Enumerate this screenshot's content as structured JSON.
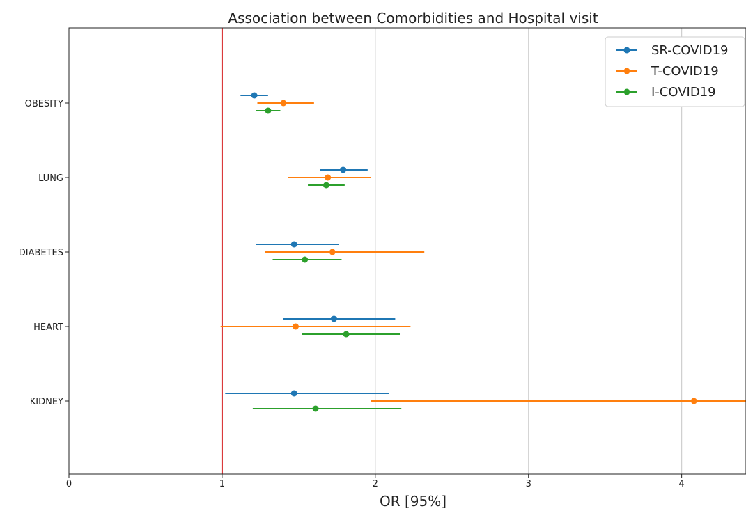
{
  "chart_data": {
    "type": "forest",
    "title": "Association between Comorbidities and Hospital visit",
    "xlabel": "OR [95%]",
    "ylabel": "",
    "xlim": [
      0,
      4.42
    ],
    "xticks": [
      0,
      1,
      2,
      3,
      4
    ],
    "reference_line": {
      "x": 1,
      "color": "#d62728"
    },
    "grid": "vertical",
    "legend_position": "top-right",
    "categories": [
      "OBESITY",
      "LUNG",
      "DIABETES",
      "HEART",
      "KIDNEY"
    ],
    "series": [
      {
        "name": "SR-COVID19",
        "color": "#1f77b4",
        "points": [
          {
            "or": 1.21,
            "low": 1.12,
            "high": 1.3
          },
          {
            "or": 1.79,
            "low": 1.64,
            "high": 1.95
          },
          {
            "or": 1.47,
            "low": 1.22,
            "high": 1.76
          },
          {
            "or": 1.73,
            "low": 1.4,
            "high": 2.13
          },
          {
            "or": 1.47,
            "low": 1.02,
            "high": 2.09
          }
        ]
      },
      {
        "name": "T-COVID19",
        "color": "#ff7f0e",
        "points": [
          {
            "or": 1.4,
            "low": 1.23,
            "high": 1.6
          },
          {
            "or": 1.69,
            "low": 1.43,
            "high": 1.97
          },
          {
            "or": 1.72,
            "low": 1.28,
            "high": 2.32
          },
          {
            "or": 1.48,
            "low": 0.99,
            "high": 2.23
          },
          {
            "or": 4.08,
            "low": 1.97,
            "high": 4.42
          }
        ]
      },
      {
        "name": "I-COVID19",
        "color": "#2ca02c",
        "points": [
          {
            "or": 1.3,
            "low": 1.22,
            "high": 1.38
          },
          {
            "or": 1.68,
            "low": 1.56,
            "high": 1.8
          },
          {
            "or": 1.54,
            "low": 1.33,
            "high": 1.78
          },
          {
            "or": 1.81,
            "low": 1.52,
            "high": 2.16
          },
          {
            "or": 1.61,
            "low": 1.2,
            "high": 2.17
          }
        ]
      }
    ]
  }
}
